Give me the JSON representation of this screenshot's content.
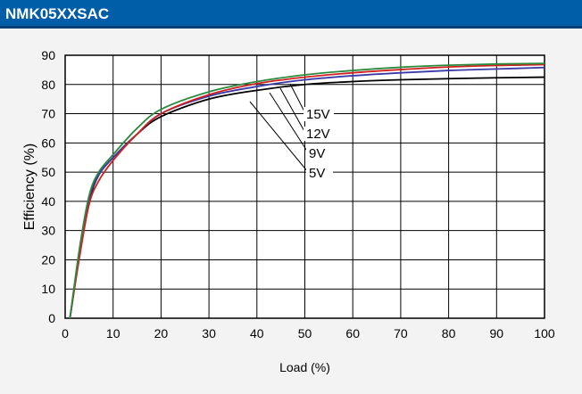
{
  "header": {
    "title": "NMK05XXSAC"
  },
  "chart_data": {
    "type": "line",
    "title": "",
    "xlabel": "Load (%)",
    "ylabel": "Efficiency (%)",
    "xlim": [
      0,
      100
    ],
    "ylim": [
      0,
      90
    ],
    "xticks": [
      0,
      10,
      20,
      30,
      40,
      50,
      60,
      70,
      80,
      90,
      100
    ],
    "yticks": [
      0,
      10,
      20,
      30,
      40,
      50,
      60,
      70,
      80,
      90
    ],
    "grid": true,
    "series": [
      {
        "name": "5V",
        "color": "#000000",
        "x": [
          1,
          3,
          5,
          7,
          10,
          15,
          20,
          30,
          40,
          50,
          60,
          70,
          80,
          90,
          100
        ],
        "y": [
          0,
          22,
          40,
          49,
          55,
          63,
          69,
          75,
          78,
          80,
          81,
          81.6,
          82,
          82.3,
          82.5
        ]
      },
      {
        "name": "9V",
        "color": "#3a3aa8",
        "x": [
          1,
          3,
          5,
          7,
          10,
          15,
          20,
          30,
          40,
          50,
          60,
          70,
          80,
          90,
          100
        ],
        "y": [
          0,
          23,
          41,
          49,
          55,
          63,
          70,
          76,
          79.3,
          81.6,
          83,
          84,
          84.8,
          85.3,
          85.8
        ]
      },
      {
        "name": "12V",
        "color": "#d02020",
        "x": [
          1,
          3,
          5,
          7,
          10,
          15,
          20,
          30,
          40,
          50,
          60,
          70,
          80,
          90,
          100
        ],
        "y": [
          0,
          21,
          39,
          47,
          54,
          63,
          70,
          76.5,
          80.3,
          82.5,
          84,
          85.1,
          86,
          86.5,
          86.8
        ]
      },
      {
        "name": "15V",
        "color": "#2b8a3e",
        "x": [
          1,
          3,
          5,
          7,
          10,
          15,
          20,
          30,
          40,
          50,
          60,
          70,
          80,
          90,
          100
        ],
        "y": [
          0,
          24,
          42,
          50,
          56,
          65,
          71.5,
          77.5,
          81,
          83.3,
          84.8,
          85.9,
          86.6,
          87,
          87.2
        ]
      }
    ],
    "annotations": [
      "15V",
      "12V",
      "9V",
      "5V"
    ]
  }
}
